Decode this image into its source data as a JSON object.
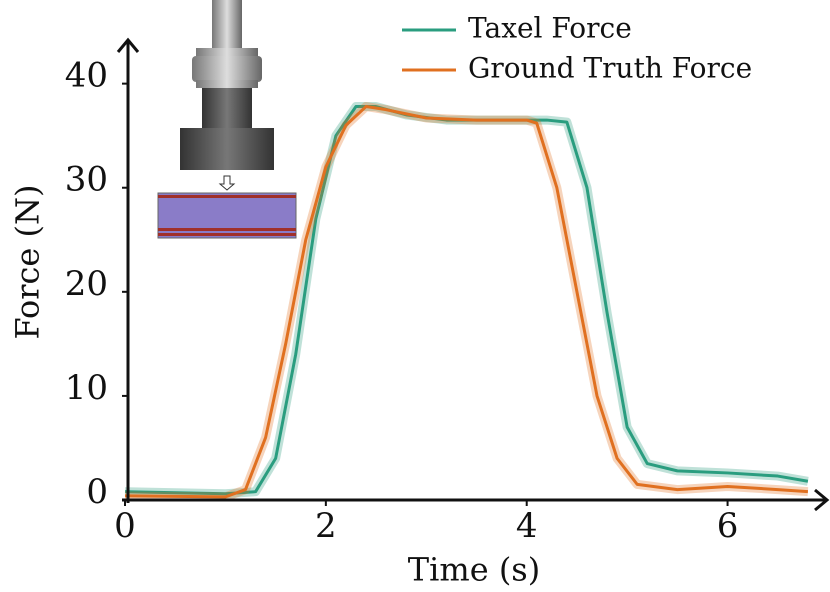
{
  "chart_data": {
    "type": "line",
    "x_label": "Time (s)",
    "y_label": "Force (N)",
    "xlim": [
      0,
      7
    ],
    "ylim": [
      0,
      44
    ],
    "xticks": [
      0,
      2,
      4,
      6
    ],
    "yticks": [
      0,
      10,
      20,
      30,
      40
    ],
    "legend": "top-right",
    "series": [
      {
        "name": "Taxel Force",
        "color": "#2a9d7f",
        "x": [
          0,
          1.0,
          1.3,
          1.5,
          1.7,
          1.9,
          2.1,
          2.3,
          2.5,
          2.8,
          3.2,
          3.8,
          4.2,
          4.4,
          4.6,
          4.8,
          5.0,
          5.2,
          5.5,
          6.0,
          6.5,
          6.8
        ],
        "values": [
          0.8,
          0.6,
          0.8,
          4,
          14,
          27,
          35,
          37.8,
          37.8,
          37,
          36.5,
          36.5,
          36.5,
          36.3,
          30,
          18,
          7,
          3.5,
          2.8,
          2.6,
          2.3,
          1.8
        ]
      },
      {
        "name": "Ground Truth Force",
        "color": "#e07020",
        "x": [
          0,
          1.0,
          1.2,
          1.4,
          1.6,
          1.8,
          2.0,
          2.2,
          2.4,
          2.6,
          3.0,
          3.5,
          4.0,
          4.1,
          4.3,
          4.5,
          4.7,
          4.9,
          5.1,
          5.5,
          6.0,
          6.5,
          6.8
        ],
        "values": [
          0.4,
          0.3,
          1,
          6,
          15,
          25,
          32,
          36,
          37.8,
          37.5,
          36.7,
          36.5,
          36.5,
          36.2,
          30,
          20,
          10,
          4,
          1.5,
          1,
          1.3,
          1,
          0.8
        ]
      }
    ]
  }
}
